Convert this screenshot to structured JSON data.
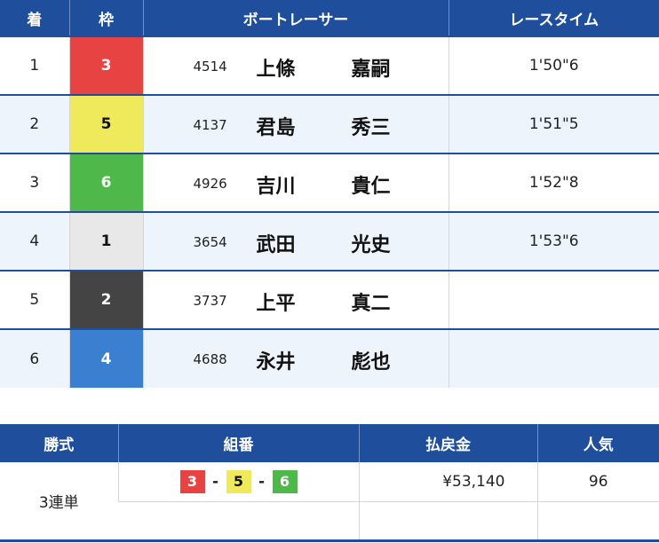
{
  "results": {
    "headers": [
      "着",
      "枠",
      "ボートレーサー",
      "レースタイム"
    ],
    "rows": [
      {
        "place": "1",
        "frame": "3",
        "number": "4514",
        "last": "上條",
        "first": "嘉嗣",
        "time": "1'50\"6"
      },
      {
        "place": "2",
        "frame": "5",
        "number": "4137",
        "last": "君島",
        "first": "秀三",
        "time": "1'51\"5"
      },
      {
        "place": "3",
        "frame": "6",
        "number": "4926",
        "last": "吉川",
        "first": "貴仁",
        "time": "1'52\"8"
      },
      {
        "place": "4",
        "frame": "1",
        "number": "3654",
        "last": "武田",
        "first": "光史",
        "time": "1'53\"6"
      },
      {
        "place": "5",
        "frame": "2",
        "number": "3737",
        "last": "上平",
        "first": "真二",
        "time": ""
      },
      {
        "place": "6",
        "frame": "4",
        "number": "4688",
        "last": "永井",
        "first": "彪也",
        "time": ""
      }
    ]
  },
  "frame_colors": {
    "1": [
      "#e8e8e8",
      "#111"
    ],
    "2": [
      "#444444",
      "#fff"
    ],
    "3": [
      "#e84343",
      "#fff"
    ],
    "4": [
      "#3b80d0",
      "#fff"
    ],
    "5": [
      "#eeea5c",
      "#111"
    ],
    "6": [
      "#4fb84a",
      "#fff"
    ]
  },
  "payout": {
    "headers": [
      "勝式",
      "組番",
      "払戻金",
      "人気"
    ],
    "type": "3連単",
    "combo": [
      "3",
      "5",
      "6"
    ],
    "separator": "-",
    "amount": "¥53,140",
    "popularity": "96"
  }
}
